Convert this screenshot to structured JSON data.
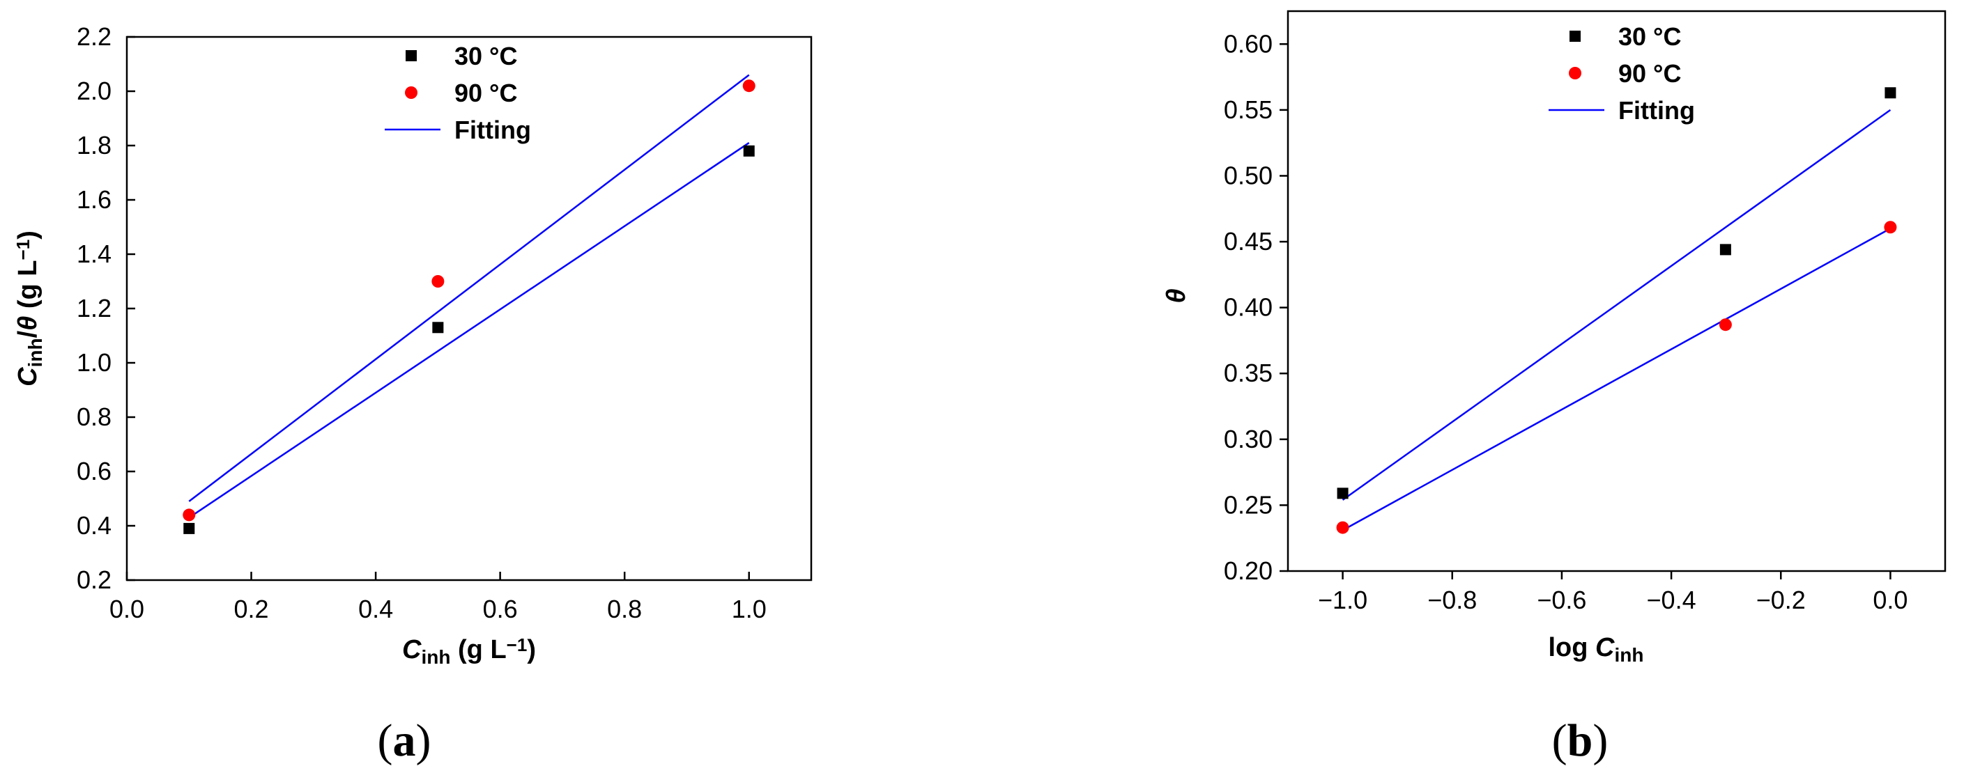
{
  "chart_data": [
    {
      "type": "scatter",
      "panel_label": "a",
      "xlabel": "C",
      "xlabel_sub": "inh",
      "xlabel_unit": " (g L",
      "xlabel_unit_sup": "−1",
      "xlabel_unit_end": ")",
      "ylabel": "C",
      "ylabel_sub": "inh",
      "ylabel_mid": "/",
      "ylabel_theta": "θ",
      "ylabel_unit": " (g L",
      "ylabel_unit_sup": "−1",
      "ylabel_unit_end": ")",
      "xlim": [
        0.0,
        1.1
      ],
      "ylim": [
        0.2,
        2.2
      ],
      "xticks": [
        0.0,
        0.2,
        0.4,
        0.6,
        0.8,
        1.0
      ],
      "xtick_labels": [
        "0.0",
        "0.2",
        "0.4",
        "0.6",
        "0.8",
        "1.0"
      ],
      "yticks": [
        0.2,
        0.4,
        0.6,
        0.8,
        1.0,
        1.2,
        1.4,
        1.6,
        1.8,
        2.0,
        2.2
      ],
      "ytick_labels": [
        "0.2",
        "0.4",
        "0.6",
        "0.8",
        "1.0",
        "1.2",
        "1.4",
        "1.6",
        "1.8",
        "2.0",
        "2.2"
      ],
      "legend_position": "top-center",
      "series": [
        {
          "name": "30 °C",
          "marker": "square",
          "color": "#000000",
          "x": [
            0.1,
            0.5,
            1.0
          ],
          "y": [
            0.39,
            1.13,
            1.78
          ]
        },
        {
          "name": "90 °C",
          "marker": "circle",
          "color": "#ff0000",
          "x": [
            0.1,
            0.5,
            1.0
          ],
          "y": [
            0.44,
            1.3,
            2.02
          ]
        }
      ],
      "fits": [
        {
          "name": "Fitting",
          "color": "#0000ff",
          "x": [
            0.1,
            1.0
          ],
          "y": [
            0.43,
            1.81
          ]
        },
        {
          "color": "#0000ff",
          "x": [
            0.1,
            1.0
          ],
          "y": [
            0.49,
            2.06
          ]
        }
      ]
    },
    {
      "type": "scatter",
      "panel_label": "b",
      "xlabel": "log ",
      "xlabel_var": "C",
      "xlabel_sub": "inh",
      "ylabel": "θ",
      "xlim": [
        -1.1,
        0.1
      ],
      "ylim": [
        0.2,
        0.625
      ],
      "xticks": [
        -1.0,
        -0.8,
        -0.6,
        -0.4,
        -0.2,
        0.0
      ],
      "xtick_labels": [
        "−1.0",
        "−0.8",
        "−0.6",
        "−0.4",
        "−0.2",
        "0.0"
      ],
      "yticks": [
        0.2,
        0.25,
        0.3,
        0.35,
        0.4,
        0.45,
        0.5,
        0.55,
        0.6
      ],
      "ytick_labels": [
        "0.20",
        "0.25",
        "0.30",
        "0.35",
        "0.40",
        "0.45",
        "0.50",
        "0.55",
        "0.60"
      ],
      "legend_position": "top-center",
      "series": [
        {
          "name": "30 °C",
          "marker": "square",
          "color": "#000000",
          "x": [
            -1.0,
            -0.301,
            0.0
          ],
          "y": [
            0.259,
            0.444,
            0.563
          ]
        },
        {
          "name": "90 °C",
          "marker": "circle",
          "color": "#ff0000",
          "x": [
            -1.0,
            -0.301,
            0.0
          ],
          "y": [
            0.233,
            0.387,
            0.461
          ]
        }
      ],
      "fits": [
        {
          "name": "Fitting",
          "color": "#0000ff",
          "x": [
            -1.0,
            0.0
          ],
          "y": [
            0.254,
            0.55
          ]
        },
        {
          "color": "#0000ff",
          "x": [
            -1.0,
            0.0
          ],
          "y": [
            0.231,
            0.46
          ]
        }
      ]
    }
  ]
}
